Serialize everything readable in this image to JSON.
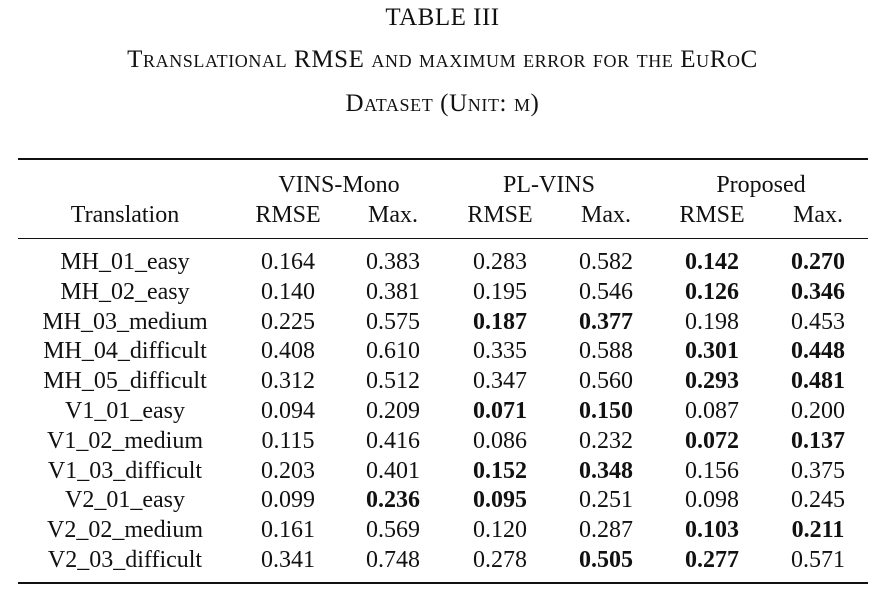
{
  "caption": {
    "label": "TABLE III",
    "line1": "Translational RMSE and maximum error for the EuRoC",
    "line2": "Dataset (Unit: m)"
  },
  "header": {
    "row_label": "Translation",
    "groups": [
      "VINS-Mono",
      "PL-VINS",
      "Proposed"
    ],
    "subcolumns": [
      "RMSE",
      "Max.",
      "RMSE",
      "Max.",
      "RMSE",
      "Max."
    ]
  },
  "rows": [
    {
      "name": "MH_01_easy",
      "values": [
        "0.164",
        "0.383",
        "0.283",
        "0.582",
        "0.142",
        "0.270"
      ],
      "bold": [
        false,
        false,
        false,
        false,
        true,
        true
      ]
    },
    {
      "name": "MH_02_easy",
      "values": [
        "0.140",
        "0.381",
        "0.195",
        "0.546",
        "0.126",
        "0.346"
      ],
      "bold": [
        false,
        false,
        false,
        false,
        true,
        true
      ]
    },
    {
      "name": "MH_03_medium",
      "values": [
        "0.225",
        "0.575",
        "0.187",
        "0.377",
        "0.198",
        "0.453"
      ],
      "bold": [
        false,
        false,
        true,
        true,
        false,
        false
      ]
    },
    {
      "name": "MH_04_difficult",
      "values": [
        "0.408",
        "0.610",
        "0.335",
        "0.588",
        "0.301",
        "0.448"
      ],
      "bold": [
        false,
        false,
        false,
        false,
        true,
        true
      ]
    },
    {
      "name": "MH_05_difficult",
      "values": [
        "0.312",
        "0.512",
        "0.347",
        "0.560",
        "0.293",
        "0.481"
      ],
      "bold": [
        false,
        false,
        false,
        false,
        true,
        true
      ]
    },
    {
      "name": "V1_01_easy",
      "values": [
        "0.094",
        "0.209",
        "0.071",
        "0.150",
        "0.087",
        "0.200"
      ],
      "bold": [
        false,
        false,
        true,
        true,
        false,
        false
      ]
    },
    {
      "name": "V1_02_medium",
      "values": [
        "0.115",
        "0.416",
        "0.086",
        "0.232",
        "0.072",
        "0.137"
      ],
      "bold": [
        false,
        false,
        false,
        false,
        true,
        true
      ]
    },
    {
      "name": "V1_03_difficult",
      "values": [
        "0.203",
        "0.401",
        "0.152",
        "0.348",
        "0.156",
        "0.375"
      ],
      "bold": [
        false,
        false,
        true,
        true,
        false,
        false
      ]
    },
    {
      "name": "V2_01_easy",
      "values": [
        "0.099",
        "0.236",
        "0.095",
        "0.251",
        "0.098",
        "0.245"
      ],
      "bold": [
        false,
        true,
        true,
        false,
        false,
        false
      ]
    },
    {
      "name": "V2_02_medium",
      "values": [
        "0.161",
        "0.569",
        "0.120",
        "0.287",
        "0.103",
        "0.211"
      ],
      "bold": [
        false,
        false,
        false,
        false,
        true,
        true
      ]
    },
    {
      "name": "V2_03_difficult",
      "values": [
        "0.341",
        "0.748",
        "0.278",
        "0.505",
        "0.277",
        "0.571"
      ],
      "bold": [
        false,
        false,
        false,
        true,
        true,
        false
      ]
    }
  ]
}
